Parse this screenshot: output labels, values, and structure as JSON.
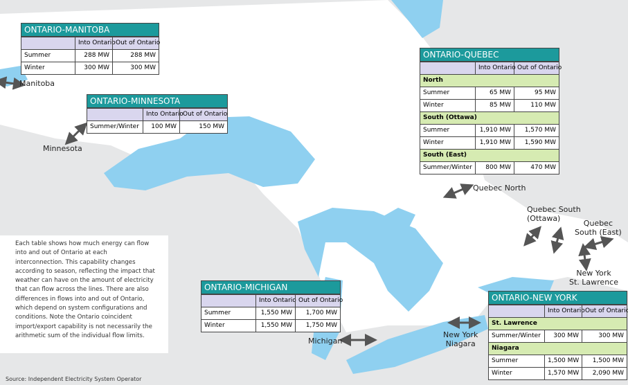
{
  "tables": [
    {
      "title": "ONTARIO-MANITOBA",
      "columns": [
        "Into Ontario",
        "Out of Ontario"
      ],
      "sections": [
        {
          "rows": [
            [
              "Summer",
              "288 MW",
              "288 MW"
            ],
            [
              "Winter",
              "300 MW",
              "300 MW"
            ]
          ]
        }
      ]
    },
    {
      "title": "ONTARIO-MINNESOTA",
      "columns": [
        "Into Ontario",
        "Out of Ontario"
      ],
      "sections": [
        {
          "rows": [
            [
              "Summer/Winter",
              "100 MW",
              "150 MW"
            ]
          ]
        }
      ]
    },
    {
      "title": "ONTARIO-QUEBEC",
      "columns": [
        "Into Ontario",
        "Out of Ontario"
      ],
      "sections": [
        {
          "heading": "North",
          "rows": [
            [
              "Summer",
              "65 MW",
              "95 MW"
            ],
            [
              "Winter",
              "85 MW",
              "110 MW"
            ]
          ]
        },
        {
          "heading": "South (Ottawa)",
          "rows": [
            [
              "Summer",
              "1,910 MW",
              "1,570 MW"
            ],
            [
              "Winter",
              "1,910 MW",
              "1,590 MW"
            ]
          ]
        },
        {
          "heading": "South (East)",
          "rows": [
            [
              "Summer/Winter",
              "800 MW",
              "470 MW"
            ]
          ]
        }
      ]
    },
    {
      "title": "ONTARIO-MICHIGAN",
      "columns": [
        "Into Ontario",
        "Out of Ontario"
      ],
      "sections": [
        {
          "rows": [
            [
              "Summer",
              "1,550 MW",
              "1,700 MW"
            ],
            [
              "Winter",
              "1,550 MW",
              "1,750 MW"
            ]
          ]
        }
      ]
    },
    {
      "title": "ONTARIO-NEW YORK",
      "columns": [
        "Into Ontario",
        "Out of Ontario"
      ],
      "sections": [
        {
          "heading": "St. Lawrence",
          "rows": [
            [
              "Summer/Winter",
              "300 MW",
              "300 MW"
            ]
          ]
        },
        {
          "heading": "Niagara",
          "rows": [
            [
              "Summer",
              "1,500 MW",
              "1,500 MW"
            ],
            [
              "Winter",
              "1,570 MW",
              "2,090 MW"
            ]
          ]
        }
      ]
    }
  ],
  "labels": [
    [
      "Manitoba"
    ],
    [
      "Minnesota"
    ],
    [
      "Quebec North"
    ],
    [
      "Quebec South",
      "(Ottawa)"
    ],
    [
      "Quebec",
      "South (East)"
    ],
    [
      "New York",
      "St. Lawrence"
    ],
    [
      "New York",
      "Niagara"
    ],
    [
      "Michigan"
    ]
  ],
  "note": "Each table shows how much energy can flow into and out of Ontario at each interconnection. This capability changes according to season, reflecting the impact that weather can have on the amount of electricity that can flow across the lines. There are also differences in flows into and out of Ontario, which depend on system configurations and conditions. Note the Ontario coincident import/export capability is not necessarily the arithmetic sum of the individual flow limits.",
  "source": "Source: Independent Electricity System Operator"
}
